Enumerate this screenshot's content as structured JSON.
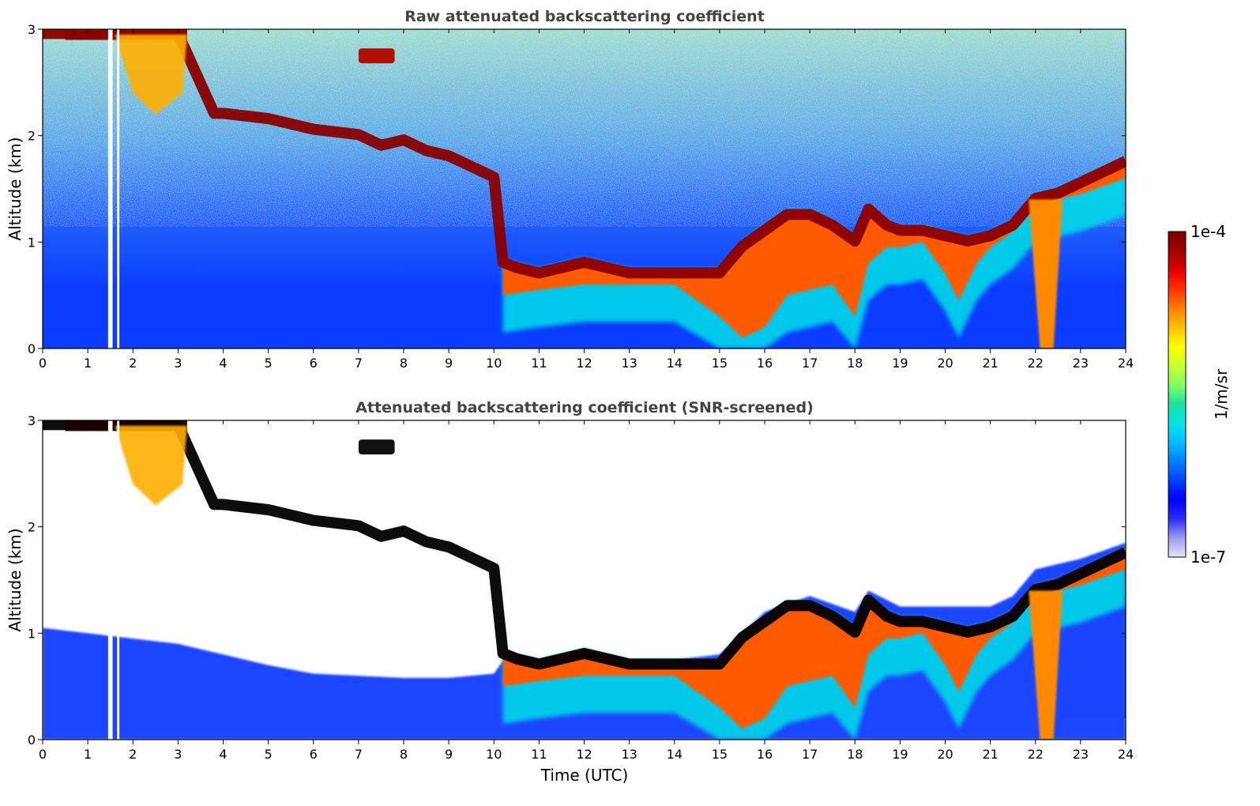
{
  "chart_data": [
    {
      "type": "heatmap",
      "title": "Raw attenuated backscattering coefficient",
      "xlabel": "",
      "ylabel": "Altitude (km)",
      "xlim": [
        0,
        24
      ],
      "ylim": [
        0,
        3
      ],
      "xticks": [
        0,
        1,
        2,
        3,
        4,
        5,
        6,
        7,
        8,
        9,
        10,
        11,
        12,
        13,
        14,
        15,
        16,
        17,
        18,
        19,
        20,
        21,
        22,
        23,
        24
      ],
      "yticks": [
        0,
        1,
        2,
        3
      ],
      "screened": false,
      "cloud_top_km": {
        "x": [
          0,
          1,
          2,
          3,
          3.8,
          4,
          5,
          6,
          7,
          7.5,
          8,
          8.5,
          9,
          9.5,
          10,
          10.2,
          10.5,
          11,
          12,
          13,
          14,
          15,
          15.5,
          16,
          16.5,
          17,
          17.5,
          18,
          18.3,
          18.7,
          19,
          19.5,
          20,
          20.5,
          21,
          21.5,
          22,
          22.5,
          23,
          24
        ],
        "y": [
          3.0,
          3.0,
          3.0,
          3.0,
          2.25,
          2.25,
          2.2,
          2.1,
          2.05,
          1.95,
          2.0,
          1.9,
          1.85,
          1.75,
          1.65,
          0.85,
          0.8,
          0.75,
          0.85,
          0.75,
          0.75,
          0.75,
          1.0,
          1.15,
          1.3,
          1.3,
          1.2,
          1.05,
          1.35,
          1.2,
          1.15,
          1.15,
          1.1,
          1.05,
          1.1,
          1.2,
          1.45,
          1.5,
          1.6,
          1.8
        ]
      },
      "gaps_hours": [
        [
          1.45,
          1.55
        ],
        [
          1.65,
          1.7
        ]
      ],
      "notes": "colormap jet-like, log scale 1e-7 to 1e-4 1/m/sr"
    },
    {
      "type": "heatmap",
      "title": "Attenuated backscattering coefficient (SNR-screened)",
      "xlabel": "Time (UTC)",
      "ylabel": "Altitude (km)",
      "xlim": [
        0,
        24
      ],
      "ylim": [
        0,
        3
      ],
      "xticks": [
        0,
        1,
        2,
        3,
        4,
        5,
        6,
        7,
        8,
        9,
        10,
        11,
        12,
        13,
        14,
        15,
        16,
        17,
        18,
        19,
        20,
        21,
        22,
        23,
        24
      ],
      "yticks": [
        0,
        1,
        2,
        3
      ],
      "screened": true
    }
  ],
  "colorbar": {
    "label": "1/m/sr",
    "max_label": "1e-4",
    "min_label": "1e-7",
    "scale": "log",
    "colors": [
      "#e6e6f7",
      "#9b9bf0",
      "#2b2bff",
      "#0000ff",
      "#0040ff",
      "#0080ff",
      "#00c0ff",
      "#00e5e5",
      "#20e0a0",
      "#80ff60",
      "#c8ff30",
      "#ffff00",
      "#ffc000",
      "#ff8000",
      "#ff3000",
      "#e00000",
      "#a00000",
      "#7a0000"
    ]
  }
}
